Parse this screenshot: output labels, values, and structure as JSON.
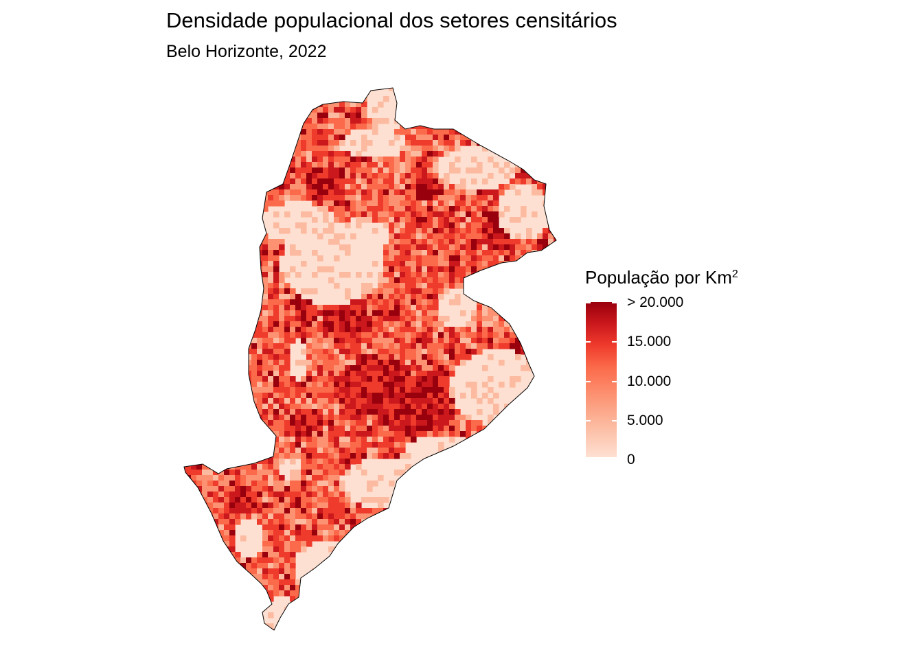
{
  "title": "Densidade populacional dos setores censitários",
  "subtitle": "Belo Horizonte, 2022",
  "legend": {
    "title": "População por Km",
    "title_superscript": "2",
    "ticks": [
      "> 20.000",
      "15.000",
      "10.000",
      "5.000",
      "0"
    ],
    "scale_min": 0,
    "scale_max": 20000,
    "palette": [
      "#fee0d2",
      "#fcbba1",
      "#fc9272",
      "#fb6a4a",
      "#ef3b2c",
      "#cb181d",
      "#99000d"
    ]
  }
}
